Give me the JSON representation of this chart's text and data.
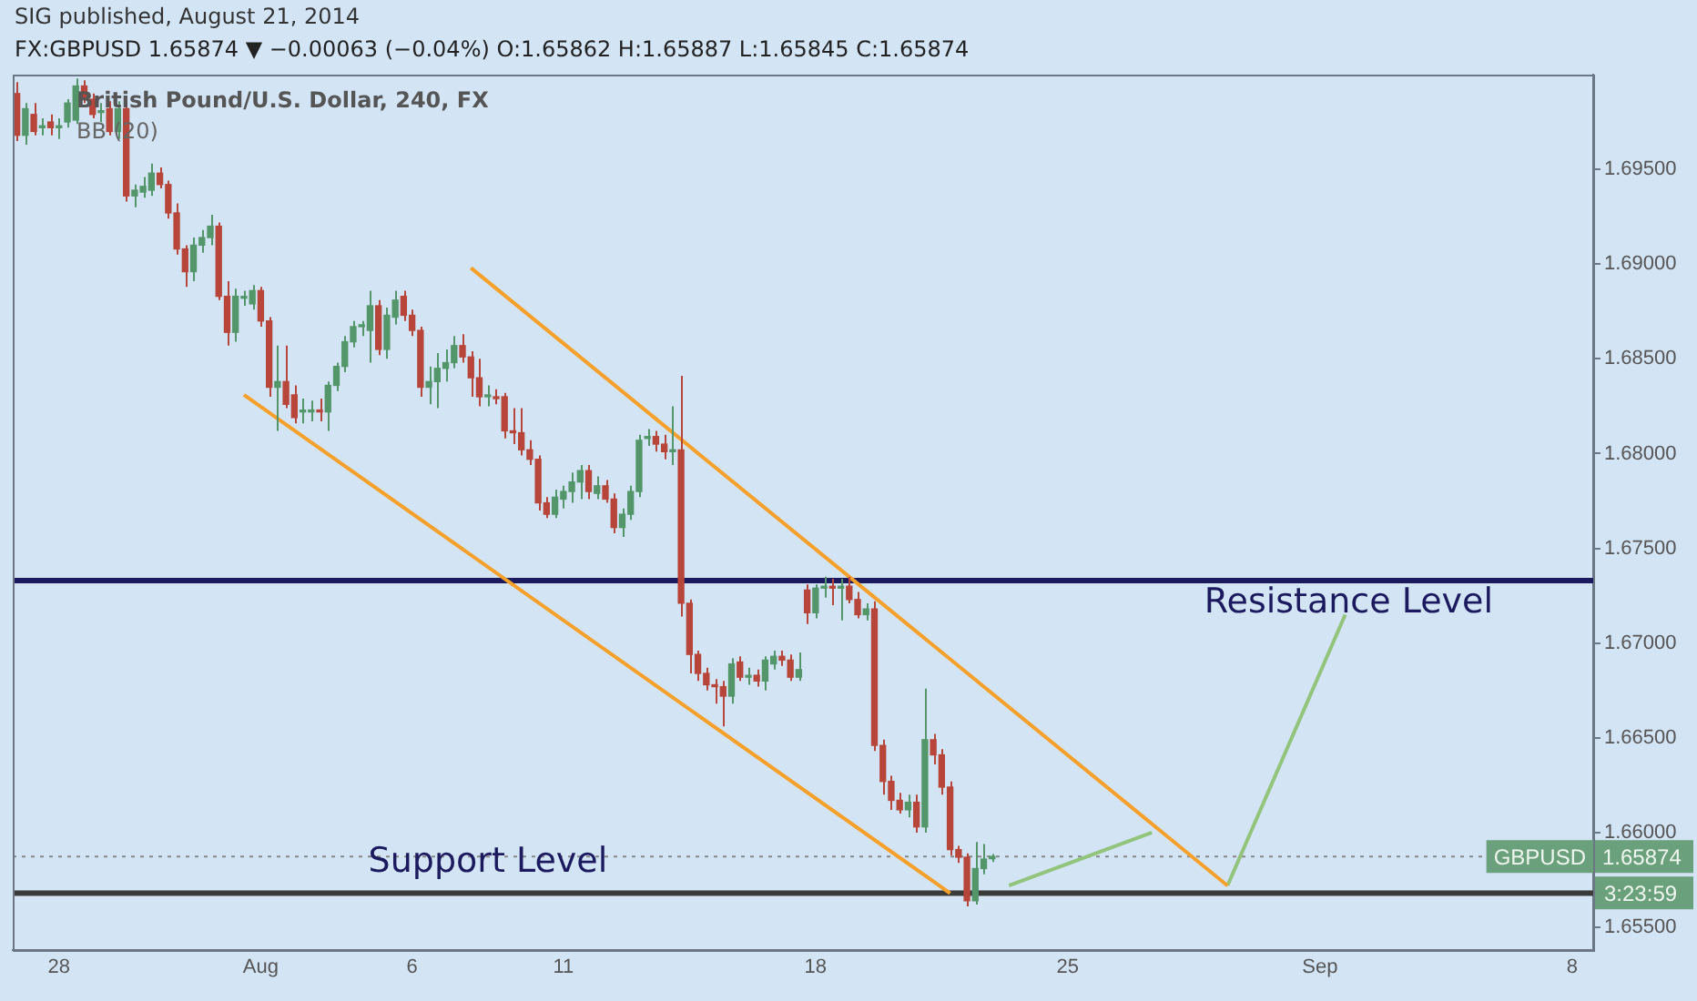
{
  "chart_data": {
    "type": "candlestick",
    "title": "FX:GBPUSD 1.65874 ▼ −0.00063 (−0.04%) O:1.65862 H:1.65887 L:1.65845 C:1.65874",
    "subtitle": "British Pound/U.S. Dollar, 240, FX",
    "annotations": [
      "SIG published, August 21, 2014",
      "BB (20)",
      "3:23:59",
      "1.65874"
    ],
    "categories": [
      null,
      null,
      null,
      null,
      null,
      "28",
      null,
      null,
      null,
      null,
      null,
      null,
      null,
      null,
      null,
      null,
      null,
      null,
      null,
      null,
      null,
      null,
      null,
      null,
      null,
      null,
      null,
      null,
      null,
      "Aug",
      null,
      null,
      null,
      null,
      null,
      null,
      null,
      null,
      null,
      null,
      null,
      null,
      null,
      null,
      null,
      null,
      null,
      "6",
      null,
      null,
      null,
      null,
      null,
      null,
      null,
      null,
      null,
      null,
      null,
      null,
      null,
      null,
      null,
      null,
      null,
      "11",
      null,
      null,
      null,
      null,
      null,
      null,
      null,
      null,
      null,
      null,
      null,
      null,
      null,
      null,
      null,
      null,
      null,
      null,
      null,
      null,
      null,
      null,
      null,
      null,
      null,
      null,
      null,
      null,
      null,
      "18",
      null,
      null,
      null,
      null,
      null,
      null,
      null,
      null,
      null,
      null,
      null,
      null,
      null,
      null,
      null,
      null,
      null,
      null,
      null,
      null,
      null,
      null,
      null,
      null,
      null,
      null,
      null,
      null,
      null,
      "25",
      null,
      null,
      null,
      null,
      null,
      null,
      null,
      null,
      null,
      null,
      null,
      null,
      null,
      null,
      null,
      null,
      null,
      null,
      null,
      null,
      null,
      null,
      null,
      null,
      null,
      null,
      null,
      null,
      null,
      "Sep",
      null,
      null,
      null,
      null,
      null,
      null,
      null,
      null,
      null,
      null,
      null,
      null,
      null,
      null,
      null,
      null,
      null,
      null,
      null,
      null,
      null,
      null,
      null,
      null,
      null,
      null,
      null,
      null,
      null,
      "8",
      null,
      null
    ],
    "ohlc": [
      [
        1.699,
        1.6996,
        1.6965,
        1.6968
      ],
      [
        1.6968,
        1.6985,
        1.6963,
        1.6982
      ],
      [
        1.6979,
        1.6985,
        1.6968,
        1.697
      ],
      [
        1.6972,
        1.6977,
        1.6968,
        1.6973
      ],
      [
        1.6975,
        1.6979,
        1.6968,
        1.6972
      ],
      [
        1.6972,
        1.6977,
        1.6966,
        1.6972
      ],
      [
        1.6975,
        1.6987,
        1.6972,
        1.6985
      ],
      [
        1.6976,
        1.6998,
        1.6974,
        1.6994
      ],
      [
        1.6994,
        1.6997,
        1.6985,
        1.6987
      ],
      [
        1.6987,
        1.699,
        1.6977,
        1.6979
      ],
      [
        1.698,
        1.6985,
        1.6975,
        1.698
      ],
      [
        1.6982,
        1.6986,
        1.6968,
        1.697
      ],
      [
        1.697,
        1.6986,
        1.6966,
        1.6982
      ],
      [
        1.6982,
        1.6985,
        1.6933,
        1.6936
      ],
      [
        1.6936,
        1.6942,
        1.693,
        1.6939
      ],
      [
        1.6938,
        1.6946,
        1.6935,
        1.6941
      ],
      [
        1.6939,
        1.6953,
        1.6936,
        1.6948
      ],
      [
        1.6948,
        1.6951,
        1.694,
        1.6942
      ],
      [
        1.6942,
        1.6944,
        1.6924,
        1.6927
      ],
      [
        1.6927,
        1.6932,
        1.6905,
        1.6908
      ],
      [
        1.6908,
        1.691,
        1.6888,
        1.6896
      ],
      [
        1.6896,
        1.6914,
        1.6891,
        1.691
      ],
      [
        1.691,
        1.6918,
        1.6906,
        1.6914
      ],
      [
        1.6914,
        1.6926,
        1.691,
        1.692
      ],
      [
        1.692,
        1.6922,
        1.6881,
        1.6883
      ],
      [
        1.6883,
        1.6891,
        1.6857,
        1.6864
      ],
      [
        1.6864,
        1.6887,
        1.6859,
        1.6883
      ],
      [
        1.6882,
        1.6886,
        1.6878,
        1.6882
      ],
      [
        1.6879,
        1.6889,
        1.6876,
        1.6886
      ],
      [
        1.6886,
        1.6888,
        1.6867,
        1.687
      ],
      [
        1.687,
        1.6872,
        1.683,
        1.6835
      ],
      [
        1.6835,
        1.6857,
        1.6812,
        1.6838
      ],
      [
        1.6838,
        1.6857,
        1.6824,
        1.6826
      ],
      [
        1.6831,
        1.6836,
        1.6816,
        1.6819
      ],
      [
        1.6822,
        1.6829,
        1.6816,
        1.6822
      ],
      [
        1.6822,
        1.6828,
        1.6817,
        1.6823
      ],
      [
        1.6823,
        1.6829,
        1.6817,
        1.6822
      ],
      [
        1.6822,
        1.6838,
        1.6812,
        1.6836
      ],
      [
        1.6836,
        1.6848,
        1.6833,
        1.6846
      ],
      [
        1.6846,
        1.6862,
        1.6843,
        1.6859
      ],
      [
        1.6859,
        1.687,
        1.6856,
        1.6867
      ],
      [
        1.6867,
        1.687,
        1.6862,
        1.6867
      ],
      [
        1.6865,
        1.6886,
        1.6848,
        1.6878
      ],
      [
        1.6878,
        1.6881,
        1.6852,
        1.6855
      ],
      [
        1.6855,
        1.6877,
        1.685,
        1.6873
      ],
      [
        1.6872,
        1.6886,
        1.6868,
        1.6881
      ],
      [
        1.6883,
        1.6886,
        1.687,
        1.6873
      ],
      [
        1.6873,
        1.6876,
        1.6862,
        1.6865
      ],
      [
        1.6865,
        1.6867,
        1.683,
        1.6835
      ],
      [
        1.6835,
        1.6846,
        1.6826,
        1.6838
      ],
      [
        1.6838,
        1.6853,
        1.6824,
        1.6845
      ],
      [
        1.6845,
        1.6855,
        1.6838,
        1.6848
      ],
      [
        1.6848,
        1.6862,
        1.6845,
        1.6857
      ],
      [
        1.6857,
        1.6863,
        1.6848,
        1.6851
      ],
      [
        1.6851,
        1.6854,
        1.683,
        1.684
      ],
      [
        1.684,
        1.685,
        1.6825,
        1.683
      ],
      [
        1.683,
        1.6836,
        1.6825,
        1.683
      ],
      [
        1.683,
        1.6834,
        1.6826,
        1.6829
      ],
      [
        1.683,
        1.6832,
        1.6808,
        1.6812
      ],
      [
        1.6812,
        1.6824,
        1.6805,
        1.6811
      ],
      [
        1.6811,
        1.6824,
        1.6799,
        1.6802
      ],
      [
        1.6802,
        1.6807,
        1.6794,
        1.6797
      ],
      [
        1.6797,
        1.6799,
        1.677,
        1.6774
      ],
      [
        1.6774,
        1.6777,
        1.6766,
        1.6768
      ],
      [
        1.6768,
        1.6781,
        1.6766,
        1.6777
      ],
      [
        1.6776,
        1.6783,
        1.6771,
        1.678
      ],
      [
        1.678,
        1.679,
        1.6774,
        1.6785
      ],
      [
        1.6785,
        1.6794,
        1.6776,
        1.6791
      ],
      [
        1.6791,
        1.6794,
        1.6776,
        1.678
      ],
      [
        1.6779,
        1.6788,
        1.6776,
        1.6783
      ],
      [
        1.6783,
        1.6786,
        1.6774,
        1.6776
      ],
      [
        1.6776,
        1.6779,
        1.6758,
        1.6761
      ],
      [
        1.6761,
        1.6771,
        1.6756,
        1.6768
      ],
      [
        1.6768,
        1.6783,
        1.6765,
        1.678
      ],
      [
        1.678,
        1.681,
        1.6777,
        1.6807
      ],
      [
        1.6808,
        1.6813,
        1.6804,
        1.6809
      ],
      [
        1.6809,
        1.6812,
        1.6801,
        1.6805
      ],
      [
        1.6805,
        1.681,
        1.6797,
        1.6801
      ],
      [
        1.6801,
        1.6825,
        1.6794,
        1.6802
      ],
      [
        1.6802,
        1.6841,
        1.6714,
        1.6721
      ],
      [
        1.6721,
        1.6723,
        1.6684,
        1.6694
      ],
      [
        1.6694,
        1.6696,
        1.668,
        1.6684
      ],
      [
        1.6684,
        1.6687,
        1.6675,
        1.6678
      ],
      [
        1.6678,
        1.6681,
        1.6668,
        1.6677
      ],
      [
        1.6677,
        1.668,
        1.6656,
        1.6672
      ],
      [
        1.6672,
        1.6692,
        1.6668,
        1.6689
      ],
      [
        1.669,
        1.6693,
        1.668,
        1.6682
      ],
      [
        1.6682,
        1.6687,
        1.6678,
        1.6682
      ],
      [
        1.6683,
        1.6686,
        1.6677,
        1.668
      ],
      [
        1.668,
        1.6693,
        1.6675,
        1.6691
      ],
      [
        1.6689,
        1.6696,
        1.6686,
        1.6693
      ],
      [
        1.6693,
        1.6696,
        1.6688,
        1.6691
      ],
      [
        1.6691,
        1.6694,
        1.668,
        1.6682
      ],
      [
        1.6682,
        1.6695,
        1.668,
        1.6686
      ],
      [
        1.6728,
        1.6731,
        1.671,
        1.6716
      ],
      [
        1.6716,
        1.6731,
        1.6713,
        1.6729
      ],
      [
        1.6729,
        1.6735,
        1.6724,
        1.673
      ],
      [
        1.673,
        1.6734,
        1.672,
        1.6729
      ],
      [
        1.6729,
        1.6734,
        1.6712,
        1.673
      ],
      [
        1.673,
        1.6735,
        1.6721,
        1.6723
      ],
      [
        1.6723,
        1.6727,
        1.6713,
        1.6715
      ],
      [
        1.6715,
        1.6721,
        1.6712,
        1.6718
      ],
      [
        1.6718,
        1.6722,
        1.6643,
        1.6646
      ],
      [
        1.6646,
        1.6649,
        1.662,
        1.6627
      ],
      [
        1.6627,
        1.663,
        1.6612,
        1.6617
      ],
      [
        1.6617,
        1.6621,
        1.661,
        1.6612
      ],
      [
        1.6612,
        1.662,
        1.6608,
        1.6616
      ],
      [
        1.6616,
        1.662,
        1.66,
        1.6603
      ],
      [
        1.6603,
        1.6676,
        1.66,
        1.6649
      ],
      [
        1.6649,
        1.6652,
        1.6636,
        1.6641
      ],
      [
        1.6641,
        1.6644,
        1.662,
        1.6624
      ],
      [
        1.6624,
        1.6627,
        1.6588,
        1.6591
      ],
      [
        1.6591,
        1.6593,
        1.6584,
        1.6587
      ],
      [
        1.6587,
        1.6589,
        1.6561,
        1.6564
      ],
      [
        1.6564,
        1.6595,
        1.6562,
        1.6581
      ],
      [
        1.6581,
        1.6594,
        1.6578,
        1.6586
      ],
      [
        1.65862,
        1.65887,
        1.65845,
        1.65874
      ],
      null,
      null,
      null,
      null,
      null,
      null,
      null,
      null,
      null,
      null,
      null,
      null,
      null,
      null,
      null,
      null,
      null,
      null,
      null,
      null,
      null,
      null,
      null,
      null,
      null,
      null,
      null,
      null,
      null,
      null,
      null,
      null,
      null,
      null,
      null,
      null,
      null,
      null,
      null,
      null,
      null,
      null,
      null,
      null,
      null,
      null,
      null,
      null,
      null,
      null,
      null,
      null,
      null,
      null,
      null,
      null,
      null,
      null,
      null,
      null,
      null,
      null,
      null,
      null,
      null,
      null,
      null,
      null,
      null,
      null,
      null
    ],
    "series": [
      {
        "type": "line",
        "color": "#f5a02a",
        "values": [
          null,
          null,
          null,
          null,
          null,
          null,
          null,
          null,
          null,
          null,
          null,
          null,
          null,
          null,
          null,
          null,
          null,
          null,
          null,
          null,
          null,
          null,
          null,
          null,
          null,
          null,
          null,
          1.6831,
          null,
          null,
          null,
          null,
          null,
          null,
          null,
          null,
          null,
          null,
          null,
          null,
          null,
          null,
          null,
          null,
          null,
          null,
          null,
          null,
          null,
          null,
          null,
          null,
          null,
          null,
          null,
          null,
          null,
          null,
          null,
          null,
          null,
          null,
          null,
          null,
          null,
          null,
          null,
          null,
          null,
          null,
          null,
          null,
          null,
          null,
          null,
          null,
          null,
          null,
          null,
          null,
          null,
          null,
          null,
          null,
          null,
          null,
          null,
          null,
          null,
          null,
          null,
          null,
          null,
          null,
          null,
          null,
          null,
          null,
          null,
          null,
          null,
          null,
          null,
          null,
          null,
          null,
          null,
          null,
          null,
          null,
          null,
          1.6568,
          null,
          null,
          null,
          null,
          null,
          null,
          null,
          null,
          null,
          null,
          null,
          null,
          null,
          null,
          null,
          null,
          null,
          null,
          null,
          null,
          null,
          null,
          null,
          null,
          null,
          null,
          null,
          null,
          null,
          null,
          null,
          null,
          null,
          null,
          null,
          null,
          null,
          null,
          null,
          null,
          null,
          null,
          null,
          null,
          null,
          null,
          null,
          null,
          null,
          null,
          null,
          null,
          null,
          null,
          null,
          null,
          null,
          null,
          null,
          null,
          null,
          null,
          null,
          null,
          null,
          null,
          null,
          null,
          null,
          null,
          null,
          null,
          null,
          null,
          null,
          null
        ]
      },
      {
        "type": "line",
        "color": "#f5a02a",
        "values": [
          null,
          null,
          null,
          null,
          null,
          null,
          null,
          null,
          null,
          null,
          null,
          null,
          null,
          null,
          null,
          null,
          null,
          null,
          null,
          null,
          null,
          null,
          null,
          null,
          null,
          null,
          null,
          null,
          null,
          null,
          null,
          null,
          null,
          null,
          null,
          null,
          null,
          null,
          null,
          null,
          null,
          null,
          null,
          null,
          null,
          null,
          null,
          null,
          null,
          null,
          null,
          null,
          null,
          null,
          1.6898,
          null,
          null,
          null,
          null,
          null,
          null,
          null,
          null,
          null,
          null,
          null,
          null,
          null,
          null,
          null,
          null,
          null,
          null,
          null,
          null,
          null,
          null,
          null,
          null,
          null,
          null,
          null,
          null,
          null,
          null,
          null,
          null,
          null,
          null,
          null,
          null,
          null,
          null,
          null,
          null,
          null,
          null,
          null,
          null,
          null,
          null,
          null,
          null,
          null,
          null,
          null,
          null,
          null,
          null,
          null,
          null,
          null,
          null,
          null,
          null,
          null,
          null,
          null,
          null,
          null,
          null,
          null,
          null,
          null,
          null,
          null,
          null,
          null,
          null,
          null,
          null,
          null,
          null,
          null,
          null,
          null,
          null,
          null,
          null,
          null,
          null,
          null,
          null,
          null,
          1.6572,
          null,
          null,
          null,
          null,
          null,
          null,
          null,
          null,
          null,
          null,
          null,
          null,
          null,
          null,
          null,
          null,
          null,
          null,
          null,
          null,
          null,
          null,
          null,
          null,
          null,
          null,
          null,
          null,
          null,
          null,
          null,
          null,
          null,
          null,
          null,
          null,
          null,
          null,
          null,
          null,
          null,
          null,
          null
        ]
      },
      {
        "type": "line",
        "color": "#92c47c",
        "values": [
          null,
          null,
          null,
          null,
          null,
          null,
          null,
          null,
          null,
          null,
          null,
          null,
          null,
          null,
          null,
          null,
          null,
          null,
          null,
          null,
          null,
          null,
          null,
          null,
          null,
          null,
          null,
          null,
          null,
          null,
          null,
          null,
          null,
          null,
          null,
          null,
          null,
          null,
          null,
          null,
          null,
          null,
          null,
          null,
          null,
          null,
          null,
          null,
          null,
          null,
          null,
          null,
          null,
          null,
          null,
          null,
          null,
          null,
          null,
          null,
          null,
          null,
          null,
          null,
          null,
          null,
          null,
          null,
          null,
          null,
          null,
          null,
          null,
          null,
          null,
          null,
          null,
          null,
          null,
          null,
          null,
          null,
          null,
          null,
          null,
          null,
          null,
          null,
          null,
          null,
          null,
          null,
          null,
          null,
          null,
          null,
          null,
          null,
          null,
          null,
          null,
          null,
          null,
          null,
          null,
          null,
          null,
          null,
          null,
          null,
          null,
          null,
          null,
          null,
          null,
          null,
          null,
          null,
          1.6572,
          null,
          null,
          null,
          null,
          null,
          null,
          null,
          null,
          null,
          null,
          null,
          null,
          null,
          null,
          null,
          null,
          1.66,
          null,
          null,
          null,
          null,
          null,
          null,
          null,
          null,
          null,
          null,
          null,
          null,
          null,
          null,
          null,
          null,
          null,
          null,
          null,
          null,
          null,
          null,
          null,
          null,
          null,
          null,
          null,
          null,
          null,
          null,
          null,
          null,
          null,
          null,
          null,
          null,
          null,
          null,
          null,
          null,
          null,
          null,
          null,
          null,
          null,
          null,
          null,
          null,
          null,
          null,
          null,
          null
        ]
      },
      {
        "type": "line",
        "color": "#92c47c",
        "values": [
          null,
          null,
          null,
          null,
          null,
          null,
          null,
          null,
          null,
          null,
          null,
          null,
          null,
          null,
          null,
          null,
          null,
          null,
          null,
          null,
          null,
          null,
          null,
          null,
          null,
          null,
          null,
          null,
          null,
          null,
          null,
          null,
          null,
          null,
          null,
          null,
          null,
          null,
          null,
          null,
          null,
          null,
          null,
          null,
          null,
          null,
          null,
          null,
          null,
          null,
          null,
          null,
          null,
          null,
          null,
          null,
          null,
          null,
          null,
          null,
          null,
          null,
          null,
          null,
          null,
          null,
          null,
          null,
          null,
          null,
          null,
          null,
          null,
          null,
          null,
          null,
          null,
          null,
          null,
          null,
          null,
          null,
          null,
          null,
          null,
          null,
          null,
          null,
          null,
          null,
          null,
          null,
          null,
          null,
          null,
          null,
          null,
          null,
          null,
          null,
          null,
          null,
          null,
          null,
          null,
          null,
          null,
          null,
          null,
          null,
          null,
          null,
          null,
          null,
          null,
          null,
          null,
          null,
          null,
          null,
          null,
          null,
          null,
          null,
          null,
          null,
          null,
          null,
          null,
          null,
          null,
          null,
          null,
          null,
          null,
          null,
          null,
          null,
          null,
          null,
          null,
          null,
          null,
          null,
          1.6572,
          null,
          null,
          null,
          null,
          null,
          null,
          null,
          null,
          null,
          null,
          null,
          null,
          null,
          1.6715,
          null,
          null,
          null,
          null,
          null,
          null,
          null,
          null,
          null,
          null,
          null,
          null,
          null,
          null,
          null,
          null,
          null,
          null,
          null,
          null,
          null,
          null,
          null,
          null,
          null,
          null,
          null,
          null,
          null
        ]
      }
    ],
    "ref_lines": [
      {
        "axis": "y",
        "value": 1.6733,
        "label": "Resistance Level",
        "color": "#1c1a5e"
      },
      {
        "axis": "y",
        "value": 1.6568,
        "label": "Support Level",
        "color": "#3b3b3b"
      },
      {
        "axis": "y",
        "value": 1.65874,
        "label": "GBPUSD",
        "color": "#888888",
        "line_style": "dotted"
      }
    ],
    "ylim": [
      1.6538,
      1.7
    ],
    "yticks": [
      {
        "value": 1.655,
        "label": "1.65500"
      },
      {
        "value": 1.66,
        "label": "1.66000"
      },
      {
        "value": 1.665,
        "label": "1.66500"
      },
      {
        "value": 1.67,
        "label": "1.67000"
      },
      {
        "value": 1.675,
        "label": "1.67500"
      },
      {
        "value": 1.68,
        "label": "1.68000"
      },
      {
        "value": 1.685,
        "label": "1.68500"
      },
      {
        "value": 1.69,
        "label": "1.69000"
      },
      {
        "value": 1.695,
        "label": "1.69500"
      }
    ],
    "marker": "none",
    "legend": false
  }
}
